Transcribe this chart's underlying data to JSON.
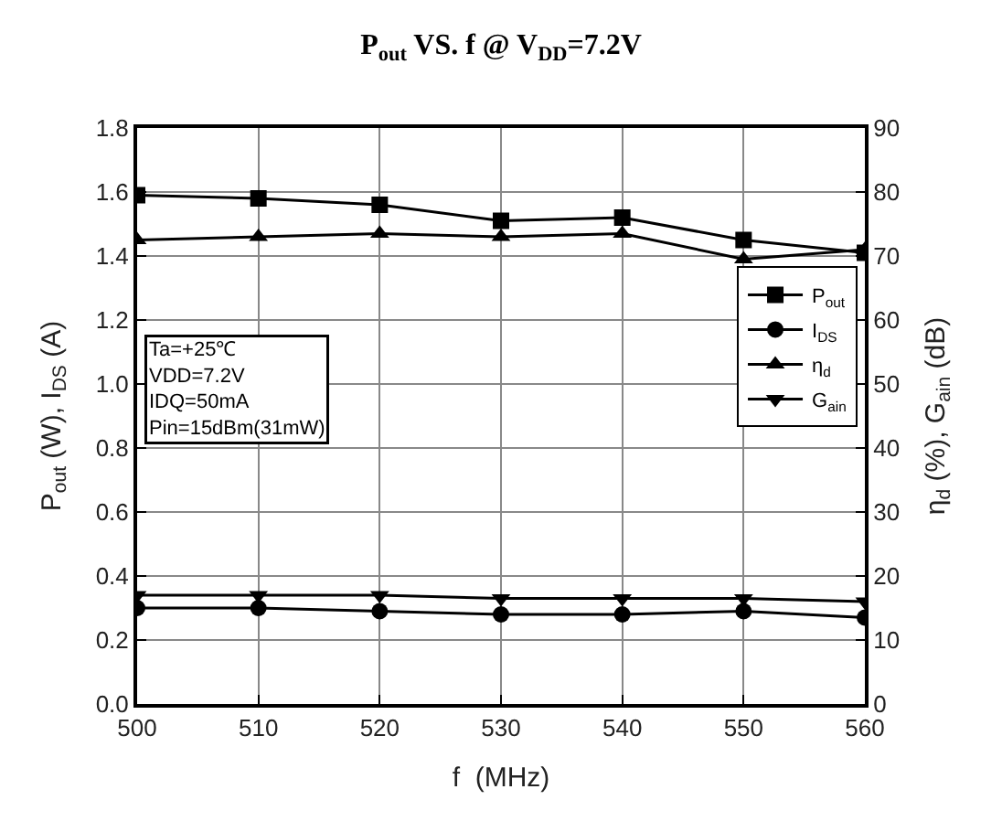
{
  "chart_data": {
    "type": "line",
    "title": "P$_{out}$ VS. f @ V$_{DD}$=7.2V",
    "xlabel": "f  (MHz)",
    "ylabel": "P$_{out}$ (W), I$_{DS}$ (A)",
    "y2label": "η$_{d}$ (%), G$_{ain}$ (dB)",
    "x": [
      500,
      510,
      520,
      530,
      540,
      550,
      560
    ],
    "series": [
      {
        "name": "P$_{out}$",
        "color": "#000000",
        "marker": "square",
        "values": [
          1.59,
          1.58,
          1.56,
          1.51,
          1.52,
          1.45,
          1.41
        ]
      },
      {
        "name": "I$_{DS}$",
        "color": "#000000",
        "marker": "circle",
        "values": [
          0.3,
          0.3,
          0.29,
          0.28,
          0.28,
          0.29,
          0.27
        ]
      },
      {
        "name": "η$_{d}$",
        "color": "#000000",
        "marker": "triangle",
        "axis": "y2",
        "values": [
          72.5,
          73,
          73.5,
          73,
          73.5,
          69.5,
          71
        ]
      },
      {
        "name": "G$_{ain}$",
        "color": "#000000",
        "marker": "triangle-down",
        "axis": "y2",
        "values": [
          17,
          17,
          17,
          16.5,
          16.5,
          16.5,
          16
        ]
      }
    ],
    "annotations": [
      "Ta=+25℃",
      "VDD=7.2V",
      "IDQ=50mA",
      "Pin=15dBm(31mW)"
    ],
    "xlim": [
      500,
      560
    ],
    "xticks": [
      500,
      510,
      520,
      530,
      540,
      550,
      560
    ],
    "ylim": [
      0,
      1.8
    ],
    "yticks": [
      {
        "value": 0,
        "label": "0.0"
      },
      0.2,
      0.4,
      0.6,
      0.8,
      {
        "value": 1,
        "label": "1.0"
      },
      1.2,
      1.4,
      1.6,
      1.8
    ],
    "y2lim": [
      0,
      90
    ],
    "y2ticks": [
      0,
      10,
      20,
      30,
      40,
      50,
      60,
      70,
      80,
      90
    ],
    "grid": true,
    "legend": "right",
    "line_style": "solid"
  }
}
